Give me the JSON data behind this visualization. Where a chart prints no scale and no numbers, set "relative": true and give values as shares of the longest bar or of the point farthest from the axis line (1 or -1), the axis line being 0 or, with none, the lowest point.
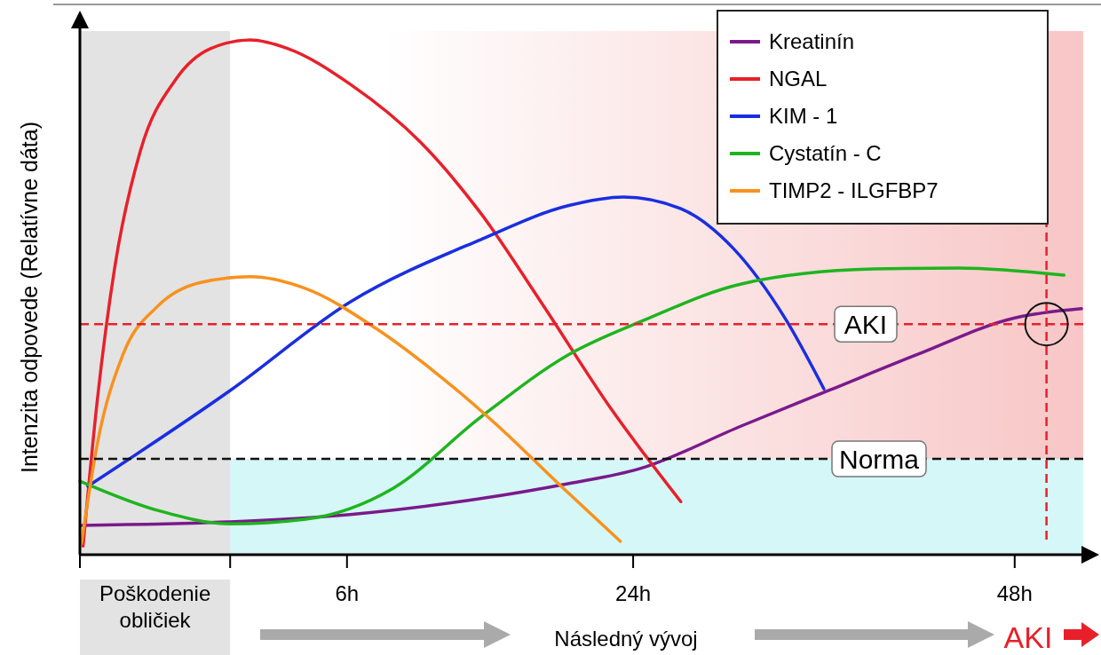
{
  "chart_data": {
    "type": "line",
    "relative": true,
    "ylabel": "Intenzita odpovede (Relatívne dáta)",
    "xlabel": "Následný vývoj",
    "annotations": [
      "AKI"
    ],
    "xlim": [
      -10.8,
      52.2
    ],
    "xticks": [
      {
        "value": -10.8,
        "label": null
      },
      {
        "value": -1.35,
        "label": null
      },
      {
        "value": 6,
        "label": "6h"
      },
      {
        "value": 24,
        "label": "24h"
      },
      {
        "value": 48,
        "label": "48h"
      }
    ],
    "legend": "top right",
    "line_style": "solid",
    "bands": [
      {
        "axis": "y",
        "from": 0,
        "to": 0.186,
        "color": "#d6f7f7"
      },
      {
        "axis": "y",
        "from": 0.186,
        "to": 1,
        "color": "#f8c6c6"
      },
      {
        "axis": "x",
        "from": -10.8,
        "to": -1.35,
        "label": "Poškodenie obličiek",
        "color": "#e3e3e3"
      }
    ],
    "ref_lines": [
      {
        "axis": "y",
        "value": 0.448,
        "label": "AKI",
        "color": "#e8202a",
        "line_style": "dashed"
      },
      {
        "axis": "y",
        "value": 0.186,
        "label": "Norma",
        "color": "#111111",
        "line_style": "dashed"
      },
      {
        "axis": "x",
        "value": 50,
        "label": null,
        "color": "#e8202a",
        "line_style": "dashed"
      }
    ],
    "series": [
      {
        "name": "Kreatinín",
        "color": "#7a1a8c",
        "x": [
          -10.7,
          -1.35,
          6.2,
          14.4,
          19.9,
          24.4,
          30.8,
          36.3,
          41.8,
          48,
          52.2
        ],
        "values": [
          0.057,
          0.064,
          0.078,
          0.109,
          0.138,
          0.167,
          0.25,
          0.319,
          0.388,
          0.46,
          0.478
        ]
      },
      {
        "name": "NGAL",
        "color": "#e8202a",
        "x": [
          -10.6,
          -9.7,
          -8.6,
          -7.0,
          -4.8,
          -2.6,
          -0.1,
          2.3,
          6.2,
          10.6,
          14.4,
          18.2,
          22.6,
          27.0
        ],
        "values": [
          0.017,
          0.302,
          0.56,
          0.784,
          0.922,
          0.983,
          1,
          0.983,
          0.914,
          0.802,
          0.664,
          0.491,
          0.284,
          0.103
        ]
      },
      {
        "name": "KIM - 1",
        "color": "#1a2ee0",
        "x": [
          -10.3,
          -1.35,
          6.2,
          14.4,
          19.9,
          23.4,
          27.0,
          30.3,
          33.6,
          36.0
        ],
        "values": [
          0.133,
          0.319,
          0.491,
          0.612,
          0.678,
          0.695,
          0.672,
          0.595,
          0.457,
          0.322
        ]
      },
      {
        "name": "Cystatín - C",
        "color": "#1fb41f",
        "x": [
          -10.8,
          -5.9,
          -1.35,
          3.4,
          8.9,
          14.4,
          19.9,
          24.8,
          30.8,
          39.1,
          44.5,
          51.1
        ],
        "values": [
          0.143,
          0.086,
          0.06,
          0.069,
          0.129,
          0.267,
          0.388,
          0.457,
          0.526,
          0.555,
          0.557,
          0.543
        ]
      },
      {
        "name": "TIMP2 - ILGFBP7",
        "color": "#f7921e",
        "x": [
          -10.7,
          -9.7,
          -8.1,
          -5.9,
          -3.2,
          -0.1,
          3.4,
          7.8,
          11.6,
          15.5,
          19.3,
          23.2
        ],
        "values": [
          0.022,
          0.216,
          0.388,
          0.483,
          0.529,
          0.54,
          0.517,
          0.44,
          0.353,
          0.25,
          0.138,
          0.026
        ]
      }
    ]
  }
}
